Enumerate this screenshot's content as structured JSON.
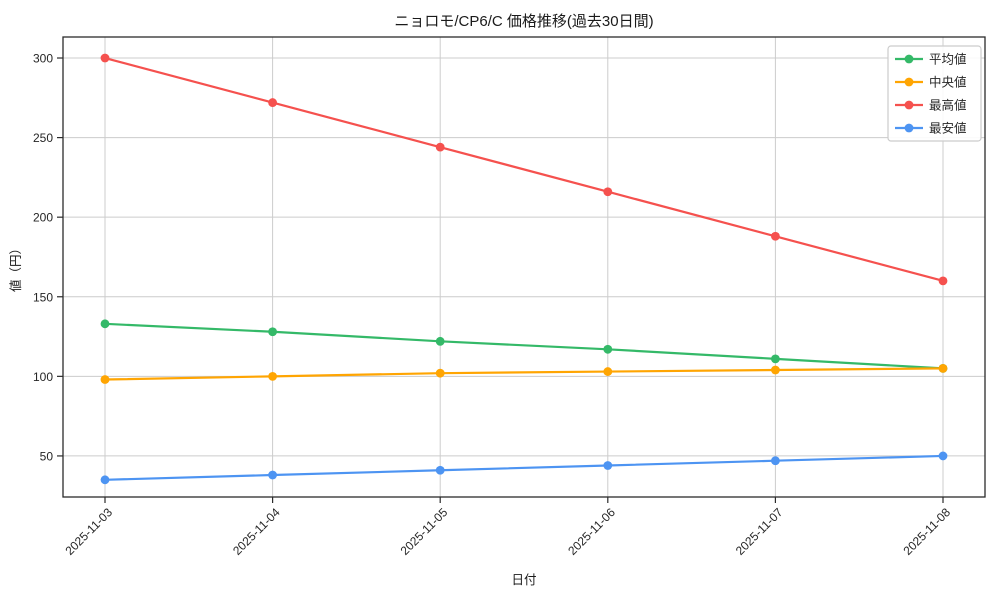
{
  "figure": {
    "title": "ニョロモ/CP6/C 価格推移(過去30日間)",
    "xlabel": "日付",
    "ylabel": "値（円）"
  },
  "chart_data": {
    "type": "line",
    "title": "ニョロモ/CP6/C 価格推移(過去30日間)",
    "xlabel": "日付",
    "ylabel": "値（円）",
    "categories": [
      "2025-11-03",
      "2025-11-04",
      "2025-11-05",
      "2025-11-06",
      "2025-11-07",
      "2025-11-08"
    ],
    "series": [
      {
        "key": "avg",
        "name": "平均値",
        "color": "#34b968",
        "values": [
          133,
          128,
          122,
          117,
          111,
          105
        ]
      },
      {
        "key": "median",
        "name": "中央値",
        "color": "#ffa502",
        "values": [
          98,
          100,
          102,
          103,
          104,
          105
        ]
      },
      {
        "key": "max",
        "name": "最高値",
        "color": "#f5514e",
        "values": [
          300,
          272,
          244,
          216,
          188,
          160
        ]
      },
      {
        "key": "min",
        "name": "最安値",
        "color": "#4d94f2",
        "values": [
          35,
          38,
          41,
          44,
          47,
          50
        ]
      }
    ],
    "yticks": [
      50,
      100,
      150,
      200,
      250,
      300
    ],
    "ylim": [
      24.2,
      313.2
    ],
    "grid": true,
    "grid_color": "#cccccc",
    "spine_color": "#2b2b2b",
    "legend_position": "upper right",
    "legend_border_color": "#cccccc",
    "x_tick_rotation_deg": 45
  }
}
